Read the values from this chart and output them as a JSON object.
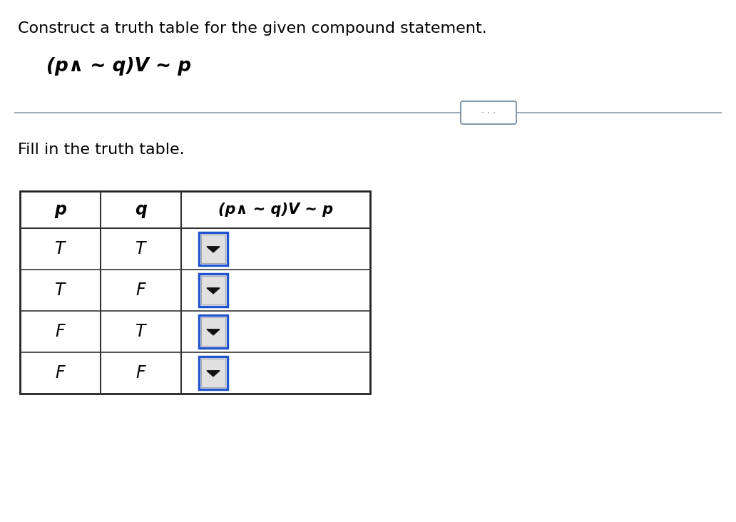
{
  "title": "Construct a truth table for the given compound statement.",
  "formula_display": "(p∧ ~ q)V ~ p",
  "fill_text": "Fill in the truth table.",
  "col_headers": [
    "p",
    "q",
    "(p∧ ~ q)V ~ p"
  ],
  "rows": [
    [
      "T",
      "T"
    ],
    [
      "T",
      "F"
    ],
    [
      "F",
      "T"
    ],
    [
      "F",
      "F"
    ]
  ],
  "bg_color": "#ffffff",
  "text_color": "#000000",
  "table_border_color": "#222222",
  "table_line_color": "#333333",
  "dropdown_border_color": "#2255cc",
  "divider_line_color": "#8899aa",
  "dots_color": "#555566"
}
